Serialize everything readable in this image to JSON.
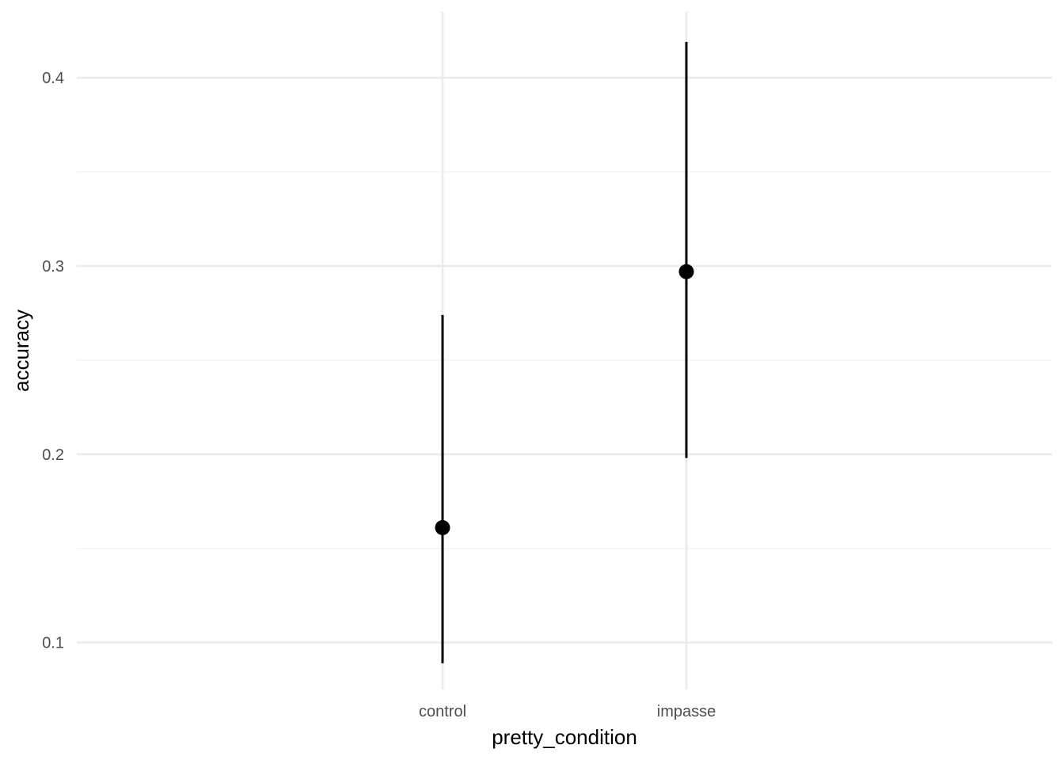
{
  "chart_data": {
    "type": "scatter",
    "title": "",
    "xlabel": "pretty_condition",
    "ylabel": "accuracy",
    "categories": [
      "control",
      "impasse"
    ],
    "series": [
      {
        "points": [
          {
            "x": "control",
            "y": 0.161,
            "ymin": 0.089,
            "ymax": 0.274
          },
          {
            "x": "impasse",
            "y": 0.297,
            "ymin": 0.198,
            "ymax": 0.419
          }
        ]
      }
    ],
    "y_ticks": [
      0.1,
      0.2,
      0.3,
      0.4
    ],
    "y_tick_labels": [
      "0.1",
      "0.2",
      "0.3",
      "0.4"
    ],
    "ylim": [
      0.075,
      0.435
    ],
    "grid": true,
    "legend": "none",
    "colors": {
      "point": "#000000",
      "errorbar": "#000000",
      "grid_major": "#ebebeb",
      "grid_minor": "#f2f2f2",
      "tick_text": "#4d4d4d"
    }
  }
}
